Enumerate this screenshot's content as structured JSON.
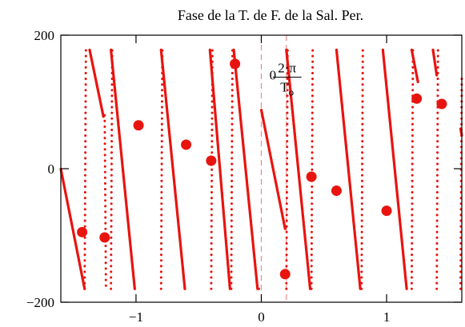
{
  "chart_data": {
    "type": "line",
    "title": "Fase de la T. de F. de la Sal. Per.",
    "xlabel": "",
    "ylabel": "",
    "xlim": [
      -1.6,
      1.6
    ],
    "ylim": [
      -200,
      200
    ],
    "x_ticks": [
      -1,
      0,
      1
    ],
    "x_tick_labels": [
      "−1",
      "0",
      "1"
    ],
    "y_ticks": [
      -200,
      0,
      200
    ],
    "y_tick_labels": [
      "−200",
      "0",
      "200"
    ],
    "grid": false,
    "colors": {
      "series": "#e8140f",
      "reference": "#e88a8a",
      "axis": "#000000"
    },
    "annotation": {
      "prefix": "0",
      "numerator": "2·π",
      "denominator": "T",
      "denominator_sub": "o",
      "x": 0.18,
      "y": 130
    },
    "reference_lines": [
      0,
      0.2
    ],
    "series": [
      {
        "style": "solid",
        "segments": [
          [
            [
              -1.6,
              -0.5
            ],
            [
              -1.41,
              -180
            ]
          ],
          [
            [
              -1.37,
              178
            ],
            [
              -1.26,
              78
            ]
          ],
          [
            [
              -1.2,
              178
            ],
            [
              -1.01,
              -180
            ]
          ],
          [
            [
              -0.8,
              178
            ],
            [
              -0.61,
              -180
            ]
          ],
          [
            [
              -0.41,
              178
            ],
            [
              -0.25,
              -180
            ]
          ],
          [
            [
              -0.22,
              178
            ],
            [
              -0.03,
              -180
            ]
          ],
          [
            [
              0.0,
              88
            ],
            [
              0.19,
              -90
            ]
          ],
          [
            [
              0.2,
              178
            ],
            [
              0.39,
              -180
            ]
          ],
          [
            [
              0.6,
              178
            ],
            [
              0.79,
              -180
            ]
          ],
          [
            [
              0.97,
              178
            ],
            [
              1.16,
              -180
            ]
          ],
          [
            [
              1.2,
              178
            ],
            [
              1.25,
              130
            ]
          ],
          [
            [
              1.37,
              178
            ],
            [
              1.4,
              140
            ]
          ],
          [
            [
              1.59,
              60
            ],
            [
              1.6,
              50
            ]
          ]
        ]
      },
      {
        "style": "dotted",
        "segments": [
          [
            [
              -1.41,
              -180
            ],
            [
              -1.4,
              178
            ]
          ],
          [
            [
              -1.25,
              80
            ],
            [
              -1.24,
              -180
            ]
          ],
          [
            [
              -1.2,
              -180
            ],
            [
              -1.19,
              178
            ]
          ],
          [
            [
              -0.8,
              -180
            ],
            [
              -0.79,
              178
            ]
          ],
          [
            [
              -0.4,
              -180
            ],
            [
              -0.39,
              178
            ]
          ],
          [
            [
              -0.24,
              -180
            ],
            [
              -0.23,
              178
            ]
          ],
          [
            [
              -0.02,
              -180
            ],
            [
              0.0,
              -180
            ]
          ],
          [
            [
              0.2,
              -180
            ],
            [
              0.21,
              178
            ]
          ],
          [
            [
              0.4,
              -180
            ],
            [
              0.41,
              178
            ]
          ],
          [
            [
              0.8,
              -180
            ],
            [
              0.81,
              178
            ]
          ],
          [
            [
              1.2,
              -180
            ],
            [
              1.21,
              178
            ]
          ],
          [
            [
              1.4,
              -180
            ],
            [
              1.41,
              178
            ]
          ],
          [
            [
              1.59,
              -180
            ],
            [
              1.6,
              140
            ]
          ]
        ]
      },
      {
        "style": "markers",
        "points": [
          [
            -1.43,
            -95
          ],
          [
            -1.25,
            -103
          ],
          [
            -0.98,
            65
          ],
          [
            -0.6,
            36
          ],
          [
            -0.4,
            12
          ],
          [
            -0.21,
            157
          ],
          [
            0.19,
            -158
          ],
          [
            0.4,
            -12
          ],
          [
            0.6,
            -33
          ],
          [
            1.0,
            -63
          ],
          [
            1.24,
            105
          ],
          [
            1.44,
            97
          ]
        ]
      }
    ]
  }
}
